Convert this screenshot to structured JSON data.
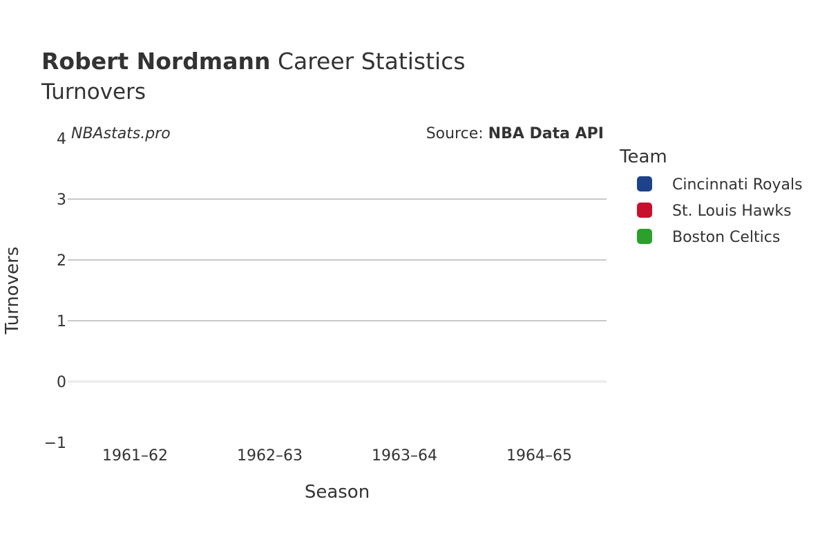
{
  "title": {
    "bold": "Robert Nordmann",
    "rest": " Career Statistics"
  },
  "subtitle": "Turnovers",
  "watermark": "NBAstats.pro",
  "source": {
    "prefix": "Source: ",
    "bold": "NBA Data API"
  },
  "legend": {
    "title": "Team",
    "items": [
      {
        "label": "Cincinnati Royals",
        "color": "#1d428a"
      },
      {
        "label": "St. Louis Hawks",
        "color": "#c8102e"
      },
      {
        "label": "Boston Celtics",
        "color": "#2ca02c"
      }
    ]
  },
  "chart_data": {
    "type": "line",
    "xlabel": "Season",
    "ylabel": "Turnovers",
    "categories": [
      "1961–62",
      "1962–63",
      "1963–64",
      "1964–65"
    ],
    "ylim": [
      -1,
      4
    ],
    "yticks": [
      -1,
      0,
      1,
      2,
      3,
      4
    ],
    "ytick_labels": [
      "−1",
      "0",
      "1",
      "2",
      "3",
      "4"
    ],
    "grid": true,
    "legend_position": "right",
    "series": [
      {
        "name": "Cincinnati Royals",
        "values": [
          null,
          null,
          null,
          null
        ]
      },
      {
        "name": "St. Louis Hawks",
        "values": [
          null,
          null,
          null,
          null
        ]
      },
      {
        "name": "Boston Celtics",
        "values": [
          null,
          null,
          null,
          null
        ]
      }
    ]
  }
}
